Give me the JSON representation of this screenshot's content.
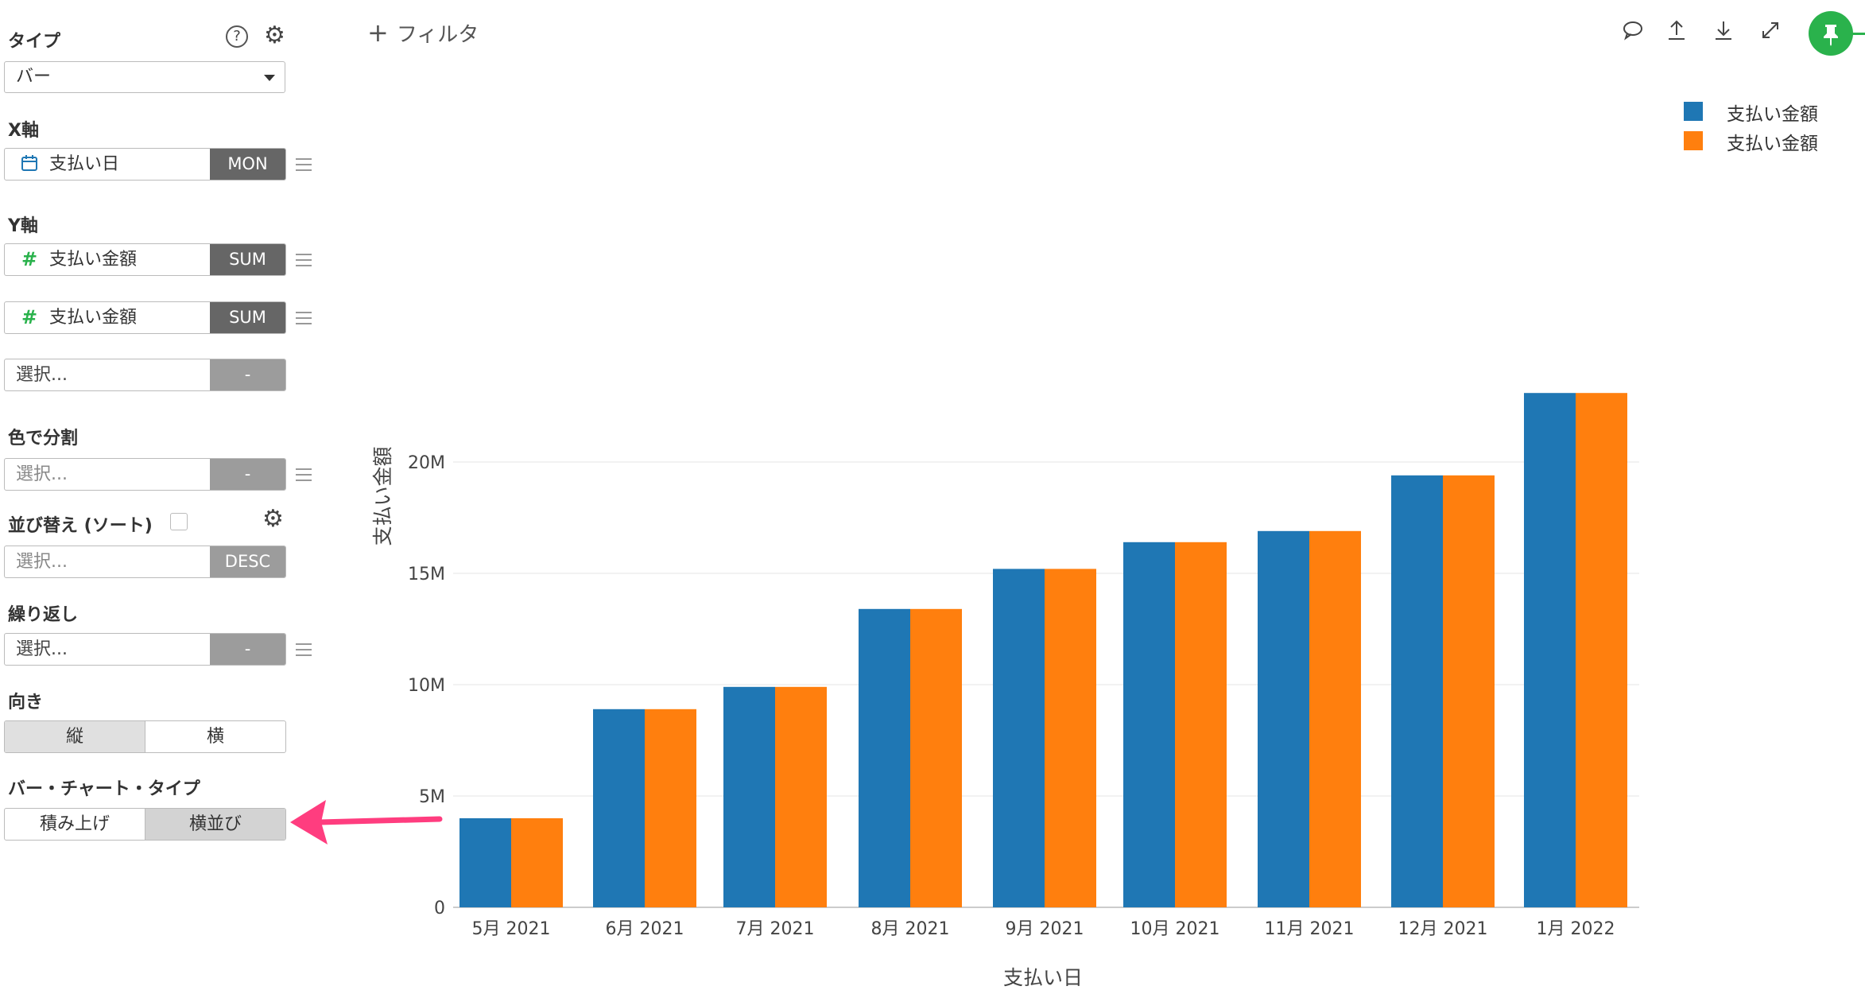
{
  "sidebar": {
    "type_label": "タイプ",
    "type_value": "バー",
    "x_label": "X軸",
    "x_field": {
      "name": "支払い日",
      "agg": "MON"
    },
    "y_label": "Y軸",
    "y_fields": [
      {
        "name": "支払い金額",
        "agg": "SUM"
      },
      {
        "name": "支払い金額",
        "agg": "SUM"
      }
    ],
    "y_empty": {
      "placeholder": "選択...",
      "agg": "-"
    },
    "color_label": "色で分割",
    "color_field": {
      "placeholder": "選択...",
      "agg": "-"
    },
    "sort_label": "並び替え (ソート)",
    "sort_field": {
      "placeholder": "選択...",
      "agg": "DESC"
    },
    "repeat_label": "繰り返し",
    "repeat_field": {
      "placeholder": "選択...",
      "agg": "-"
    },
    "orientation_label": "向き",
    "orientation_options": [
      "縦",
      "横"
    ],
    "orientation_selected": "縦",
    "bar_type_label": "バー・チャート・タイプ",
    "bar_type_options": [
      "積み上げ",
      "横並び"
    ],
    "bar_type_selected": "横並び"
  },
  "toolbar": {
    "filter_label": "フィルタ",
    "icons": [
      "comment-icon",
      "upload-icon",
      "download-icon",
      "expand-icon",
      "pin-icon"
    ]
  },
  "colors": {
    "series1": "#1f77b4",
    "series2": "#ff7f0e",
    "accent": "#2ab24c",
    "arrow": "#ff3d7f"
  },
  "chart_data": {
    "type": "bar",
    "xlabel": "支払い日",
    "ylabel": "支払い金額",
    "categories": [
      "5月 2021",
      "6月 2021",
      "7月 2021",
      "8月 2021",
      "9月 2021",
      "10月 2021",
      "11月 2021",
      "12月 2021",
      "1月 2022"
    ],
    "series": [
      {
        "name": "支払い金額",
        "color": "#1f77b4",
        "values": [
          4.0,
          8.9,
          9.9,
          13.4,
          15.2,
          16.4,
          16.9,
          19.4,
          23.1
        ]
      },
      {
        "name": "支払い金額",
        "color": "#ff7f0e",
        "values": [
          4.0,
          8.9,
          9.9,
          13.4,
          15.2,
          16.4,
          16.9,
          19.4,
          23.1
        ]
      }
    ],
    "value_unit": "M",
    "ylim": [
      0,
      23.1
    ],
    "yticks": [
      "0",
      "5M",
      "10M",
      "15M",
      "20M"
    ],
    "grid": true,
    "legend_position": "top-right"
  }
}
